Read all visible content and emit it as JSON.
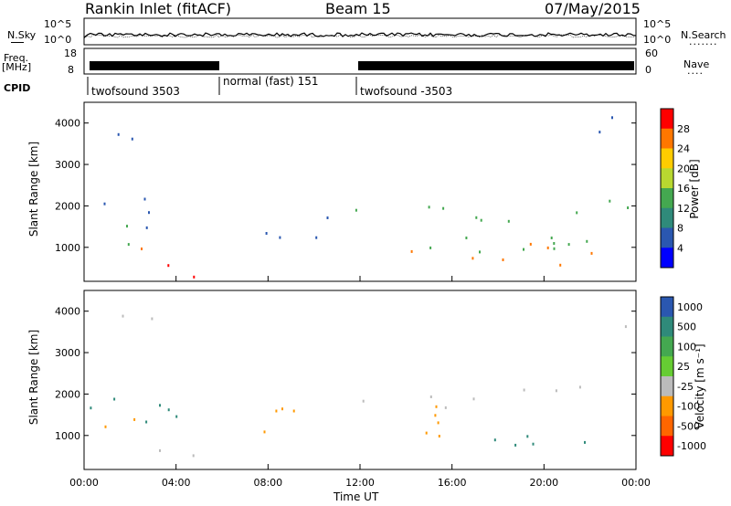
{
  "header": {
    "station": "Rankin Inlet (fitACF)",
    "beam": "Beam 15",
    "date": "07/May/2015"
  },
  "top_panels": {
    "nsky_label": "N.Sky",
    "nsearch_label": "N.Search",
    "freq_label_1": "Freq.",
    "freq_label_2": "[MHz]",
    "nave_label": "Nave",
    "cpid_label": "CPID",
    "nsky_ticks": [
      "10^5",
      "10^0"
    ],
    "nsearch_ticks": [
      "10^5",
      "10^0"
    ],
    "freq_ticks": [
      "18",
      "8"
    ],
    "nave_ticks": [
      "60",
      "0"
    ],
    "cpid_segments": [
      {
        "label": "twofsound 3503",
        "start_hour": 0
      },
      {
        "label": "normal (fast) 151",
        "start_hour": 6
      },
      {
        "label": "twofsound -3503",
        "start_hour": 12
      }
    ]
  },
  "chart_data": [
    {
      "type": "heatmap",
      "name": "power",
      "ylabel": "Slant Range [km]",
      "yticks": [
        "1000",
        "2000",
        "3000",
        "4000"
      ],
      "ylim": [
        180,
        4500
      ],
      "xlim": [
        0,
        24
      ],
      "colorbar_label": "Power [dB]",
      "colorbar_ticks": [
        "28",
        "24",
        "20",
        "16",
        "12",
        "8",
        "4"
      ],
      "colorbar_colors": [
        "#ff0000",
        "#ff7700",
        "#ffcc00",
        "#b8d830",
        "#44a850",
        "#2f8a7a",
        "#2a57b0",
        "#0000ff"
      ],
      "scatter_regions": [
        {
          "x": [
            0.2,
            4.0
          ],
          "y": [
            1200,
            2200
          ],
          "color": "#2a57b0"
        },
        {
          "x": [
            0.2,
            2.5
          ],
          "y": [
            800,
            1700
          ],
          "color": "#44a850"
        },
        {
          "x": [
            0.4,
            3.0
          ],
          "y": [
            900,
            1400
          ],
          "color": "#ff7700"
        },
        {
          "x": [
            3.0,
            6.0
          ],
          "y": [
            200,
            700
          ],
          "color": "#ff0000"
        },
        {
          "x": [
            7.5,
            11.0
          ],
          "y": [
            900,
            1900
          ],
          "color": "#2a57b0"
        },
        {
          "x": [
            9.5,
            24.0
          ],
          "y": [
            1800,
            2200
          ],
          "color": "#44a850"
        },
        {
          "x": [
            12.0,
            24.0
          ],
          "y": [
            900,
            1800
          ],
          "color": "#44a850"
        },
        {
          "x": [
            14.0,
            24.0
          ],
          "y": [
            600,
            1200
          ],
          "color": "#ff7700"
        },
        {
          "x": [
            0.2,
            3.0
          ],
          "y": [
            3500,
            4000
          ],
          "color": "#2a57b0"
        },
        {
          "x": [
            22.0,
            23.9
          ],
          "y": [
            3400,
            4200
          ],
          "color": "#2a57b0"
        }
      ]
    },
    {
      "type": "heatmap",
      "name": "velocity",
      "ylabel": "Slant Range [km]",
      "yticks": [
        "1000",
        "2000",
        "3000",
        "4000"
      ],
      "ylim": [
        180,
        4500
      ],
      "xlim": [
        0,
        24
      ],
      "xticks": [
        "00:00",
        "04:00",
        "08:00",
        "12:00",
        "16:00",
        "20:00",
        "00:00"
      ],
      "xlabel": "Time UT",
      "colorbar_label": "Velocity [m s⁻¹]",
      "colorbar_ticks": [
        "1000",
        "500",
        "100",
        "25",
        "-25",
        "-100",
        "-500",
        "-1000"
      ],
      "colorbar_colors": [
        "#2a57b0",
        "#2f8a7a",
        "#44a850",
        "#66cc33",
        "#bbbbbb",
        "#ff9900",
        "#ff6600",
        "#ff0000"
      ],
      "scatter_regions": [
        {
          "x": [
            0.2,
            4.0
          ],
          "y": [
            800,
            2200
          ],
          "color": "#2f8a7a"
        },
        {
          "x": [
            0.4,
            3.0
          ],
          "y": [
            900,
            1500
          ],
          "color": "#ff9900"
        },
        {
          "x": [
            3.0,
            6.0
          ],
          "y": [
            200,
            700
          ],
          "color": "#bbbbbb"
        },
        {
          "x": [
            7.5,
            11.0
          ],
          "y": [
            900,
            1800
          ],
          "color": "#ff9900"
        },
        {
          "x": [
            12.0,
            24.0
          ],
          "y": [
            1700,
            2200
          ],
          "color": "#bbbbbb"
        },
        {
          "x": [
            12.0,
            17.0
          ],
          "y": [
            900,
            1800
          ],
          "color": "#ff9900"
        },
        {
          "x": [
            17.0,
            24.0
          ],
          "y": [
            600,
            1200
          ],
          "color": "#2f8a7a"
        },
        {
          "x": [
            0.2,
            3.0
          ],
          "y": [
            3500,
            4000
          ],
          "color": "#bbbbbb"
        },
        {
          "x": [
            22.0,
            23.9
          ],
          "y": [
            3500,
            4000
          ],
          "color": "#bbbbbb"
        }
      ]
    }
  ]
}
